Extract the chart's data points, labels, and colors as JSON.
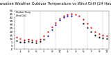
{
  "title": "Milwaukee Weather Outdoor Temperature vs Wind Chill (24 Hours)",
  "title_fontsize": 3.8,
  "background_color": "#ffffff",
  "plot_bg": "#ffffff",
  "grid_color": "#888888",
  "temp_color": "#dd0000",
  "wind_color": "#0000cc",
  "other_color": "#000000",
  "legend_labels": [
    "Outdoor Temp",
    "Wind Chill"
  ],
  "hours": [
    0,
    1,
    2,
    3,
    4,
    5,
    6,
    7,
    8,
    9,
    10,
    11,
    12,
    13,
    14,
    15,
    16,
    17,
    18,
    19,
    20,
    21,
    22,
    23
  ],
  "temp": [
    12,
    10,
    8,
    9,
    8,
    7,
    9,
    14,
    20,
    27,
    33,
    39,
    43,
    45,
    46,
    45,
    43,
    38,
    32,
    26,
    20,
    17,
    15,
    14
  ],
  "wind_chill": [
    99,
    99,
    99,
    99,
    99,
    99,
    99,
    99,
    14,
    23,
    30,
    37,
    41,
    43,
    43,
    99,
    99,
    99,
    99,
    99,
    99,
    99,
    99,
    99
  ],
  "other": [
    7,
    5,
    5,
    6,
    5,
    4,
    6,
    9,
    99,
    99,
    99,
    99,
    99,
    99,
    99,
    99,
    99,
    32,
    26,
    20,
    15,
    12,
    11,
    10
  ],
  "ylim": [
    -5,
    50
  ],
  "yticks": [
    -5,
    0,
    5,
    10,
    15,
    20,
    25,
    30,
    35,
    40,
    45,
    50
  ],
  "ytick_labels": [
    "-5",
    "0",
    "5",
    "10",
    "15",
    "20",
    "25",
    "30",
    "35",
    "40",
    "45",
    "50"
  ],
  "grid_hours": [
    2,
    6,
    10,
    14,
    18,
    22
  ],
  "marker_size": 2.5,
  "tick_fontsize": 3.0
}
